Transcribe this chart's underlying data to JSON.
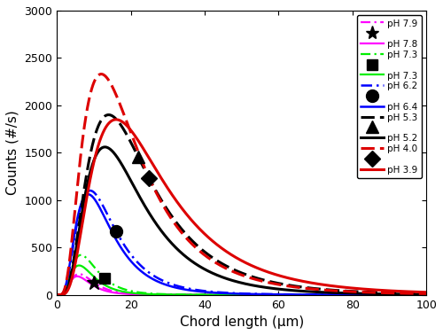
{
  "xlabel": "Chord length (μm)",
  "ylabel": "Counts (#/s)",
  "xlim": [
    0,
    100
  ],
  "ylim": [
    0,
    3000
  ],
  "yticks": [
    0,
    500,
    1000,
    1500,
    2000,
    2500,
    3000
  ],
  "xticks": [
    0,
    20,
    40,
    60,
    80,
    100
  ],
  "curves": [
    {
      "label": "pH 7.9",
      "color": "#ff00ff",
      "linestyle": "dashdot",
      "lw": 1.6,
      "peak_x": 6.0,
      "peak_y": 220,
      "sigma": 0.5
    },
    {
      "label": "pH 7.8",
      "color": "#ff00ff",
      "linestyle": "solid",
      "lw": 1.6,
      "peak_x": 5.5,
      "peak_y": 195,
      "sigma": 0.5
    },
    {
      "label": "pH 7.3",
      "color": "#00ee00",
      "linestyle": "dashdot",
      "lw": 1.6,
      "peak_x": 6.5,
      "peak_y": 420,
      "sigma": 0.52
    },
    {
      "label": "pH 7.3",
      "color": "#00ee00",
      "linestyle": "solid",
      "lw": 1.6,
      "peak_x": 6.0,
      "peak_y": 310,
      "sigma": 0.52
    },
    {
      "label": "pH 6.2",
      "color": "#0000ff",
      "linestyle": "dashdot",
      "lw": 1.8,
      "peak_x": 9.0,
      "peak_y": 1100,
      "sigma": 0.58
    },
    {
      "label": "pH 6.4",
      "color": "#0000ff",
      "linestyle": "solid",
      "lw": 1.8,
      "peak_x": 8.5,
      "peak_y": 1060,
      "sigma": 0.58
    },
    {
      "label": "pH 5.3",
      "color": "#000000",
      "linestyle": "dashed",
      "lw": 2.2,
      "peak_x": 14.0,
      "peak_y": 1900,
      "sigma": 0.62
    },
    {
      "label": "pH 5.2",
      "color": "#000000",
      "linestyle": "solid",
      "lw": 2.2,
      "peak_x": 13.0,
      "peak_y": 1560,
      "sigma": 0.6
    },
    {
      "label": "pH 4.0",
      "color": "#dd0000",
      "linestyle": "dashed",
      "lw": 2.2,
      "peak_x": 12.0,
      "peak_y": 2330,
      "sigma": 0.65
    },
    {
      "label": "pH 3.9",
      "color": "#dd0000",
      "linestyle": "solid",
      "lw": 2.2,
      "peak_x": 16.0,
      "peak_y": 1850,
      "sigma": 0.63
    }
  ],
  "markers_on_curves": [
    {
      "curve_idx": 0,
      "marker": "*",
      "marker_x": 10,
      "ms": 12,
      "label": "pH 7.9"
    },
    {
      "curve_idx": 2,
      "marker": "s",
      "marker_x": 13,
      "ms": 9,
      "label": "pH 7.3"
    },
    {
      "curve_idx": 4,
      "marker": "o",
      "marker_x": 16,
      "ms": 10,
      "label": "pH 6.2"
    },
    {
      "curve_idx": 6,
      "marker": "^",
      "marker_x": 22,
      "ms": 10,
      "label": "pH 5.3"
    },
    {
      "curve_idx": 8,
      "marker": "D",
      "marker_x": 25,
      "ms": 9,
      "label": "pH 4.0"
    }
  ],
  "legend_order": [
    {
      "type": "line",
      "curve_idx": 0
    },
    {
      "type": "marker_only",
      "marker": "*",
      "ms": 11
    },
    {
      "type": "line",
      "curve_idx": 1
    },
    {
      "type": "line",
      "curve_idx": 2
    },
    {
      "type": "marker_only",
      "marker": "s",
      "ms": 9
    },
    {
      "type": "line",
      "curve_idx": 3
    },
    {
      "type": "line",
      "curve_idx": 4
    },
    {
      "type": "marker_only",
      "marker": "o",
      "ms": 10
    },
    {
      "type": "line",
      "curve_idx": 5
    },
    {
      "type": "line",
      "curve_idx": 6
    },
    {
      "type": "marker_only",
      "marker": "^",
      "ms": 10
    },
    {
      "type": "line",
      "curve_idx": 7
    },
    {
      "type": "line",
      "curve_idx": 8
    },
    {
      "type": "marker_only",
      "marker": "D",
      "ms": 9
    },
    {
      "type": "line",
      "curve_idx": 9
    }
  ]
}
